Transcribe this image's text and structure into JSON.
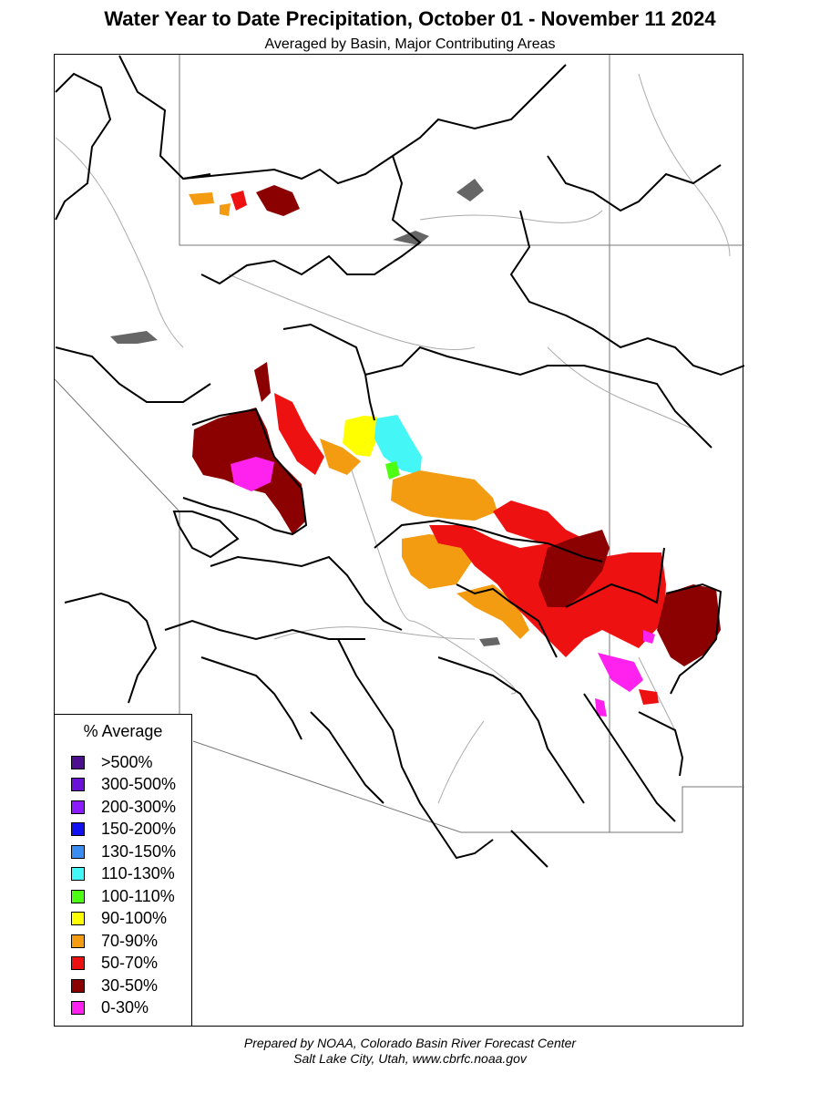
{
  "header": {
    "title": "Water Year to Date Precipitation, October 01  - November 11 2024",
    "subtitle": "Averaged by Basin, Major Contributing Areas"
  },
  "legend": {
    "title": "% Average",
    "items": [
      {
        "label": ">500%",
        "color": "#4b0f8f"
      },
      {
        "label": "300-500%",
        "color": "#6a12d6"
      },
      {
        "label": "200-300%",
        "color": "#8a1cff"
      },
      {
        "label": "150-200%",
        "color": "#1010f0"
      },
      {
        "label": "130-150%",
        "color": "#3b8df2"
      },
      {
        "label": "110-130%",
        "color": "#44f6f6"
      },
      {
        "label": "100-110%",
        "color": "#4dff12"
      },
      {
        "label": "90-100%",
        "color": "#ffff00"
      },
      {
        "label": "70-90%",
        "color": "#f39c12"
      },
      {
        "label": "50-70%",
        "color": "#ee1111"
      },
      {
        "label": "30-50%",
        "color": "#8b0000"
      },
      {
        "label": "0-30%",
        "color": "#ff22ee"
      }
    ]
  },
  "footer": {
    "line1": "Prepared by NOAA, Colorado Basin River Forecast Center",
    "line2": "Salt Lake City, Utah, www.cbrfc.noaa.gov"
  }
}
